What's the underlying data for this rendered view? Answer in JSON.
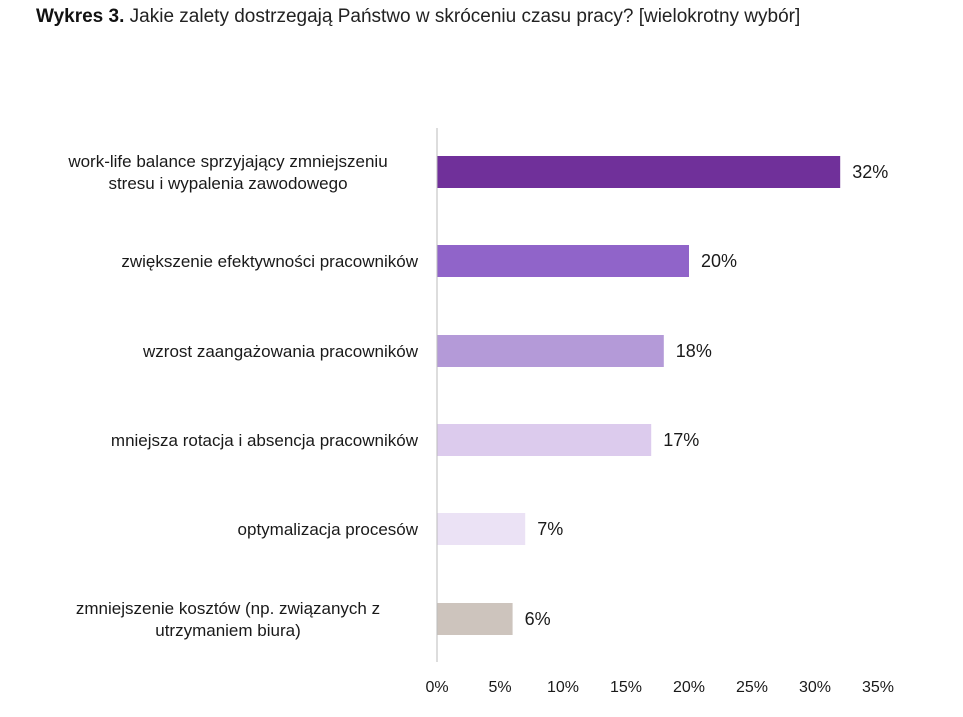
{
  "chart_data": {
    "type": "bar",
    "orientation": "horizontal",
    "title_prefix": "Wykres 3.",
    "title": "Jakie zalety dostrzegają Państwo w skróceniu czasu pracy? [wielokrotny wybór]",
    "xlim": [
      0,
      35
    ],
    "xticks": [
      "0%",
      "5%",
      "10%",
      "15%",
      "20%",
      "25%",
      "30%",
      "35%"
    ],
    "grid": false,
    "categories": [
      [
        "work-life balance sprzyjający zmniejszeniu",
        "stresu i wypalenia zawodowego"
      ],
      [
        "zwiększenie efektywności pracowników"
      ],
      [
        "wzrost zaangażowania pracowników"
      ],
      [
        "mniejsza rotacja i absencja pracowników"
      ],
      [
        "optymalizacja procesów"
      ],
      [
        "zmniejszenie kosztów (np. związanych z",
        "utrzymaniem biura)"
      ]
    ],
    "values": [
      32,
      20,
      18,
      17,
      7,
      6
    ],
    "value_labels": [
      "32%",
      "20%",
      "18%",
      "17%",
      "7%",
      "6%"
    ],
    "colors": [
      "#70309a",
      "#9064c9",
      "#b49ad8",
      "#dccbed",
      "#ebe2f5",
      "#cdc4bd"
    ]
  }
}
